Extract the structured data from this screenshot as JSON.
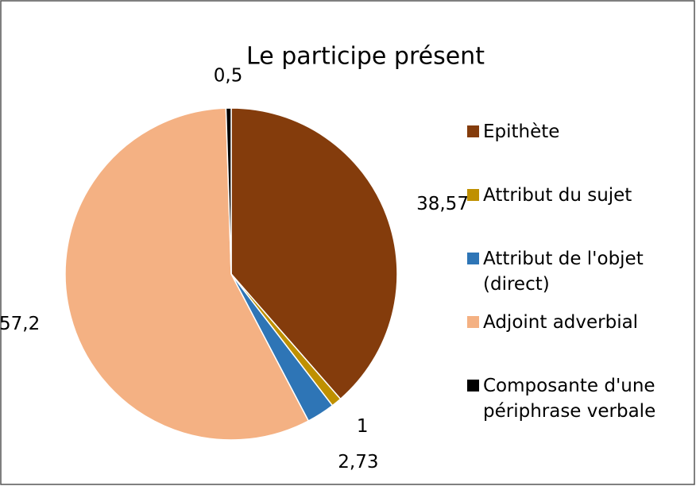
{
  "chart_data": {
    "type": "pie",
    "title": "Le participe présent",
    "categories": [
      "Epithète",
      "Attribut du sujet",
      "Attribut de l'objet (direct)",
      "Adjoint adverbial",
      "Composante d'une périphrase verbale"
    ],
    "values": [
      38.57,
      1,
      2.73,
      57.2,
      0.5
    ],
    "value_labels": [
      "38,57",
      "1",
      "2,73",
      "57,2",
      "0,5"
    ],
    "colors": [
      "#843c0c",
      "#bf9000",
      "#2e75b6",
      "#f4b183",
      "#000000"
    ],
    "legend": "right"
  }
}
